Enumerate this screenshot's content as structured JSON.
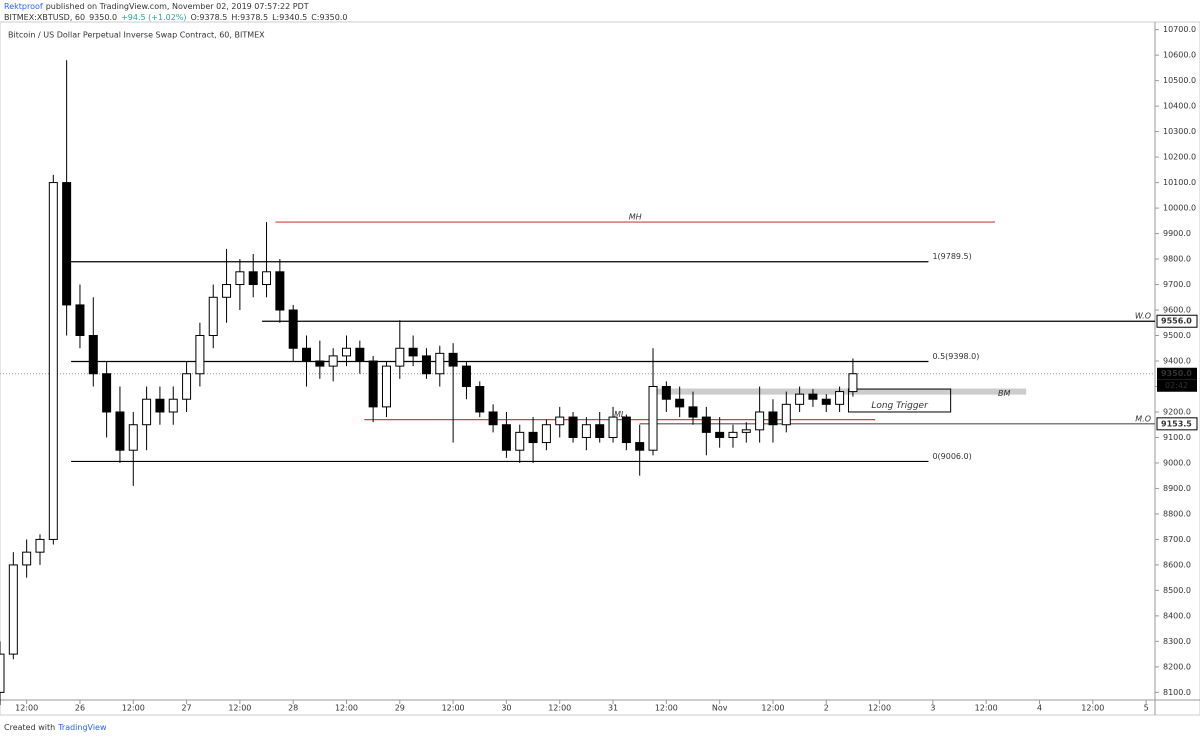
{
  "header": {
    "author": "Rektproof",
    "published": "published on TradingView.com, November 02, 2019 07:57:22 PDT",
    "symbol": "BITMEX:XBTUSD, 60",
    "last": "9350.0",
    "change": "+94.5 (+1.02%)",
    "ohlc": [
      "O:9378.5",
      "H:9378.5",
      "L:9340.5",
      "C:9350.0"
    ]
  },
  "chart_data": {
    "type": "candlestick",
    "title": "Bitcoin / US Dollar Perpetual Inverse Swap Contract, 60, BITMEX",
    "x": [
      -18,
      -15,
      -12,
      -9,
      -6,
      -3,
      0,
      3,
      6,
      9,
      12,
      15,
      18,
      21,
      24,
      27,
      30,
      33,
      36,
      39,
      42,
      45,
      48,
      51,
      54,
      57,
      60,
      63,
      66,
      69,
      72,
      75,
      78,
      81,
      84,
      87,
      90,
      93,
      96,
      99,
      102,
      105,
      108,
      111,
      114,
      117,
      120,
      123,
      126,
      129,
      132,
      135,
      138,
      141,
      144,
      147,
      150,
      153,
      156,
      159,
      162,
      165,
      168,
      171,
      174
    ],
    "open": [
      8100,
      8250,
      8600,
      8650,
      8700,
      10100,
      9620,
      9500,
      9350,
      9200,
      9050,
      9150,
      9250,
      9200,
      9250,
      9350,
      9500,
      9650,
      9700,
      9750,
      9700,
      9750,
      9600,
      9450,
      9400,
      9380,
      9420,
      9450,
      9400,
      9220,
      9380,
      9450,
      9420,
      9350,
      9430,
      9380,
      9300,
      9200,
      9150,
      9050,
      9120,
      9080,
      9150,
      9180,
      9100,
      9150,
      9100,
      9180,
      9080,
      9050,
      9300,
      9250,
      9220,
      9180,
      9120,
      9100,
      9120,
      9130,
      9200,
      9150,
      9230,
      9270,
      9250,
      9230,
      9280
    ],
    "high": [
      8300,
      8650,
      8700,
      8720,
      10130,
      10580,
      9700,
      9650,
      9400,
      9300,
      9200,
      9300,
      9300,
      9300,
      9400,
      9550,
      9700,
      9840,
      9800,
      9820,
      9945,
      9800,
      9620,
      9500,
      9480,
      9450,
      9500,
      9480,
      9420,
      9400,
      9560,
      9500,
      9450,
      9460,
      9470,
      9400,
      9320,
      9230,
      9200,
      9150,
      9180,
      9170,
      9220,
      9200,
      9180,
      9200,
      9220,
      9190,
      9150,
      9450,
      9320,
      9300,
      9280,
      9220,
      9180,
      9150,
      9160,
      9300,
      9250,
      9280,
      9300,
      9290,
      9270,
      9300,
      9410
    ],
    "low": [
      8050,
      8230,
      8550,
      8600,
      8680,
      9500,
      9450,
      9300,
      9100,
      9000,
      8910,
      9050,
      9150,
      9150,
      9200,
      9300,
      9450,
      9550,
      9600,
      9650,
      9650,
      9550,
      9400,
      9300,
      9330,
      9320,
      9380,
      9350,
      9160,
      9180,
      9330,
      9380,
      9330,
      9300,
      9080,
      9250,
      9180,
      9120,
      9020,
      9000,
      9000,
      9050,
      9100,
      9080,
      9050,
      9080,
      9080,
      9050,
      8950,
      9030,
      9200,
      9180,
      9150,
      9030,
      9060,
      9060,
      9080,
      9080,
      9080,
      9120,
      9200,
      9220,
      9200,
      9200,
      9260
    ],
    "close": [
      8250,
      8600,
      8650,
      8700,
      10100,
      9620,
      9500,
      9350,
      9200,
      9050,
      9150,
      9250,
      9200,
      9250,
      9350,
      9500,
      9650,
      9700,
      9750,
      9700,
      9750,
      9600,
      9450,
      9400,
      9380,
      9420,
      9450,
      9400,
      9220,
      9380,
      9450,
      9420,
      9350,
      9430,
      9380,
      9300,
      9200,
      9150,
      9050,
      9120,
      9080,
      9150,
      9180,
      9100,
      9150,
      9100,
      9180,
      9080,
      9050,
      9300,
      9250,
      9220,
      9180,
      9120,
      9100,
      9120,
      9130,
      9200,
      9150,
      9230,
      9270,
      9250,
      9230,
      9280,
      9350
    ],
    "up_color": "#ffffff",
    "down_color": "#000000",
    "edge_color": "#000000",
    "xlim": [
      -18,
      242
    ],
    "xticks": [
      {
        "value": -12,
        "label": "12:00"
      },
      {
        "value": 0,
        "label": "26"
      },
      {
        "value": 12,
        "label": "12:00"
      },
      {
        "value": 24,
        "label": "27"
      },
      {
        "value": 36,
        "label": "12:00"
      },
      {
        "value": 48,
        "label": "28"
      },
      {
        "value": 60,
        "label": "12:00"
      },
      {
        "value": 72,
        "label": "29"
      },
      {
        "value": 84,
        "label": "12:00"
      },
      {
        "value": 96,
        "label": "30"
      },
      {
        "value": 108,
        "label": "12:00"
      },
      {
        "value": 120,
        "label": "31"
      },
      {
        "value": 132,
        "label": "12:00"
      },
      {
        "value": 144,
        "label": "Nov"
      },
      {
        "value": 156,
        "label": "12:00"
      },
      {
        "value": 168,
        "label": "2"
      },
      {
        "value": 180,
        "label": "12:00"
      },
      {
        "value": 192,
        "label": "3"
      },
      {
        "value": 204,
        "label": "12:00"
      },
      {
        "value": 216,
        "label": "4"
      },
      {
        "value": 228,
        "label": "12:00"
      },
      {
        "value": 240,
        "label": "5"
      }
    ],
    "ylim": [
      8070,
      10730
    ],
    "yticks": [
      {
        "value": 8100,
        "label": "8100.0"
      },
      {
        "value": 8200,
        "label": "8200.0"
      },
      {
        "value": 8300,
        "label": "8300.0"
      },
      {
        "value": 8400,
        "label": "8400.0"
      },
      {
        "value": 8500,
        "label": "8500.0"
      },
      {
        "value": 8600,
        "label": "8600.0"
      },
      {
        "value": 8700,
        "label": "8700.0"
      },
      {
        "value": 8800,
        "label": "8800.0"
      },
      {
        "value": 8900,
        "label": "8900.0"
      },
      {
        "value": 9000,
        "label": "9000.0"
      },
      {
        "value": 9100,
        "label": "9100.0"
      },
      {
        "value": 9200,
        "label": "9200.0"
      },
      {
        "value": 9300,
        "label": "9300.0"
      },
      {
        "value": 9400,
        "label": "9400.0"
      },
      {
        "value": 9500,
        "label": "9500.0"
      },
      {
        "value": 9600,
        "label": "9600.0"
      },
      {
        "value": 9700,
        "label": "9700.0"
      },
      {
        "value": 9800,
        "label": "9800.0"
      },
      {
        "value": 9900,
        "label": "9900.0"
      },
      {
        "value": 10000,
        "label": "10000.0"
      },
      {
        "value": 10100,
        "label": "10100.0"
      },
      {
        "value": 10200,
        "label": "10200.0"
      },
      {
        "value": 10300,
        "label": "10300.0"
      },
      {
        "value": 10400,
        "label": "10400.0"
      },
      {
        "value": 10500,
        "label": "10500.0"
      },
      {
        "value": 10600,
        "label": "10600.0"
      },
      {
        "value": 10700,
        "label": "10700.0"
      }
    ],
    "levels": [
      {
        "name": "MH",
        "value": 9945,
        "from": 44,
        "to": 206,
        "color": "#d04040",
        "label_at": "center"
      },
      {
        "name": "1(9789.5)",
        "value": 9789.5,
        "from": -2,
        "to": 191,
        "color": "#000000",
        "label_at": "right"
      },
      {
        "name": "W.O",
        "value": 9556,
        "from": 41,
        "to": 242,
        "color": "#000000",
        "label_at": "end",
        "axis_label": "9556.0"
      },
      {
        "name": "0.5(9398.0)",
        "value": 9398,
        "from": -2,
        "to": 191,
        "color": "#000000",
        "label_at": "right"
      },
      {
        "name": "ML",
        "value": 9170,
        "from": 64,
        "to": 179,
        "color": "#d04040",
        "label_at": "center"
      },
      {
        "name": "M.O",
        "value": 9153.5,
        "from": 126,
        "to": 242,
        "color": "#555555",
        "label_at": "end",
        "axis_label": "9153.5"
      },
      {
        "name": "0(9006.0)",
        "value": 9006,
        "from": -2,
        "to": 191,
        "color": "#000000",
        "label_at": "right"
      }
    ],
    "band": {
      "name": "BM",
      "low": 9268,
      "high": 9292,
      "from": 130,
      "to": 213,
      "color": "#cccccc"
    },
    "box": {
      "name": "Long Trigger",
      "low": 9200,
      "high": 9290,
      "from": 173,
      "to": 196
    },
    "last_price": {
      "value": 9350,
      "label": "9350.0",
      "countdown": "02:42"
    }
  },
  "footer": {
    "text": "Created with",
    "brand": "TradingView"
  }
}
